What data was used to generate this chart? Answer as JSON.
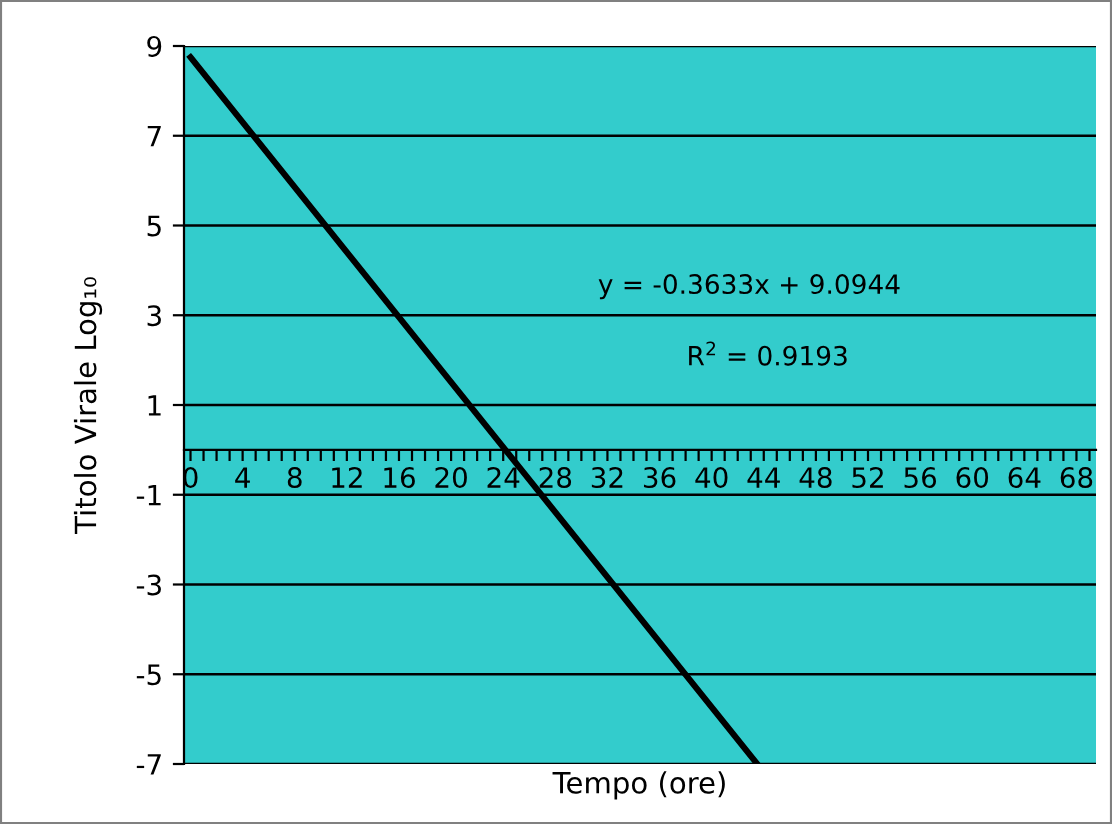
{
  "chart_data": {
    "type": "line",
    "xlabel": "Tempo (ore)",
    "ylabel": "Titolo Virale Log₁₀",
    "series": [
      {
        "color": "#000000",
        "x": [
          0,
          43.5
        ],
        "values": [
          8.75,
          -7
        ]
      }
    ],
    "annotations": [
      "y = -0.3633x + 9.0944",
      "R$^{2}$ = 0.9193"
    ],
    "xlim": [
      -0.5,
      69.5
    ],
    "xticks": [
      0,
      {
        "value": 1,
        "label": null
      },
      {
        "value": 2,
        "label": null
      },
      {
        "value": 3,
        "label": null
      },
      4,
      {
        "value": 5,
        "label": null
      },
      {
        "value": 6,
        "label": null
      },
      {
        "value": 7,
        "label": null
      },
      8,
      {
        "value": 9,
        "label": null
      },
      {
        "value": 10,
        "label": null
      },
      {
        "value": 11,
        "label": null
      },
      12,
      {
        "value": 13,
        "label": null
      },
      {
        "value": 14,
        "label": null
      },
      {
        "value": 15,
        "label": null
      },
      16,
      {
        "value": 17,
        "label": null
      },
      {
        "value": 18,
        "label": null
      },
      {
        "value": 19,
        "label": null
      },
      20,
      {
        "value": 21,
        "label": null
      },
      {
        "value": 22,
        "label": null
      },
      {
        "value": 23,
        "label": null
      },
      24,
      {
        "value": 25,
        "label": null
      },
      {
        "value": 26,
        "label": null
      },
      {
        "value": 27,
        "label": null
      },
      28,
      {
        "value": 29,
        "label": null
      },
      {
        "value": 30,
        "label": null
      },
      {
        "value": 31,
        "label": null
      },
      32,
      {
        "value": 33,
        "label": null
      },
      {
        "value": 34,
        "label": null
      },
      {
        "value": 35,
        "label": null
      },
      36,
      {
        "value": 37,
        "label": null
      },
      {
        "value": 38,
        "label": null
      },
      {
        "value": 39,
        "label": null
      },
      40,
      {
        "value": 41,
        "label": null
      },
      {
        "value": 42,
        "label": null
      },
      {
        "value": 43,
        "label": null
      },
      44,
      {
        "value": 45,
        "label": null
      },
      {
        "value": 46,
        "label": null
      },
      {
        "value": 47,
        "label": null
      },
      48,
      {
        "value": 49,
        "label": null
      },
      {
        "value": 50,
        "label": null
      },
      {
        "value": 51,
        "label": null
      },
      52,
      {
        "value": 53,
        "label": null
      },
      {
        "value": 54,
        "label": null
      },
      {
        "value": 55,
        "label": null
      },
      56,
      {
        "value": 57,
        "label": null
      },
      {
        "value": 58,
        "label": null
      },
      {
        "value": 59,
        "label": null
      },
      60,
      {
        "value": 61,
        "label": null
      },
      {
        "value": 62,
        "label": null
      },
      {
        "value": 63,
        "label": null
      },
      64,
      {
        "value": 65,
        "label": null
      },
      {
        "value": 66,
        "label": null
      },
      {
        "value": 67,
        "label": null
      },
      68,
      {
        "value": 69,
        "label": null
      }
    ],
    "ylim": [
      -7,
      9
    ],
    "yticks": [
      -7,
      -5,
      -3,
      -1,
      1,
      3,
      5,
      7,
      9
    ],
    "grid": "y",
    "legend": false,
    "marker": "none",
    "line_style": "solid"
  }
}
